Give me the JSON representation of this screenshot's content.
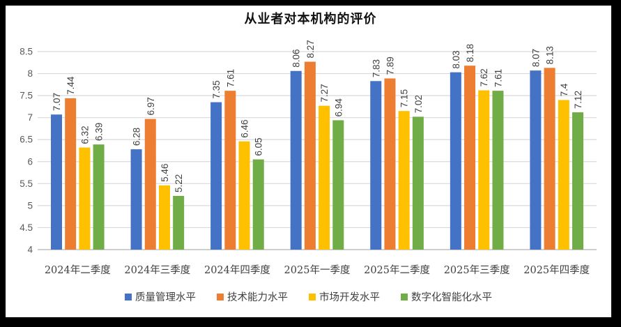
{
  "frame": {
    "background_color": "#000000",
    "chart_background_color": "#ffffff"
  },
  "chart_data": {
    "type": "bar",
    "title": "从业者对本机构的评价",
    "categories": [
      "2024年二季度",
      "2024年三季度",
      "2024年四季度",
      "2025年一季度",
      "2025年二季度",
      "2025年三季度",
      "2025年四季度"
    ],
    "series": [
      {
        "name": "质量管理水平",
        "color": "#4472C4",
        "values": [
          7.07,
          6.28,
          7.35,
          8.06,
          7.83,
          8.03,
          8.07
        ],
        "labels": [
          "7.07",
          "6.28",
          "7.35",
          "8.06",
          "7.83",
          "8.03",
          "8.07"
        ]
      },
      {
        "name": "技术能力水平",
        "color": "#ED7D31",
        "values": [
          7.44,
          6.97,
          7.61,
          8.27,
          7.89,
          8.18,
          8.13
        ],
        "labels": [
          "7.44",
          "6.97",
          "7.61",
          "8.27",
          "7.89",
          "8.18",
          "8.13"
        ]
      },
      {
        "name": "市场开发水平",
        "color": "#FFC000",
        "values": [
          6.32,
          5.46,
          6.46,
          7.27,
          7.15,
          7.62,
          7.4
        ],
        "labels": [
          "6.32",
          "5.46",
          "6.46",
          "7.27",
          "7.15",
          "7.62",
          "7.4"
        ]
      },
      {
        "name": "数字化智能化水平",
        "color": "#70AD47",
        "values": [
          6.39,
          5.22,
          6.05,
          6.94,
          7.02,
          7.61,
          7.12
        ],
        "labels": [
          "6.39",
          "5.22",
          "6.05",
          "6.94",
          "7.02",
          "7.61",
          "7.12"
        ]
      }
    ],
    "y_axis": {
      "min": 4,
      "max": 8.5,
      "step": 0.5,
      "tick_labels": [
        "8.5",
        "8",
        "7.5",
        "7",
        "6.5",
        "6",
        "5.5",
        "5",
        "4.5",
        "4"
      ]
    },
    "grid": true,
    "gridline_color": "#D9D9D9",
    "axis_line_color": "#BFBFBF",
    "data_label_color": "#404040",
    "axis_text_color": "#595959",
    "legend_position": "bottom",
    "data_labels_rotated": true
  }
}
